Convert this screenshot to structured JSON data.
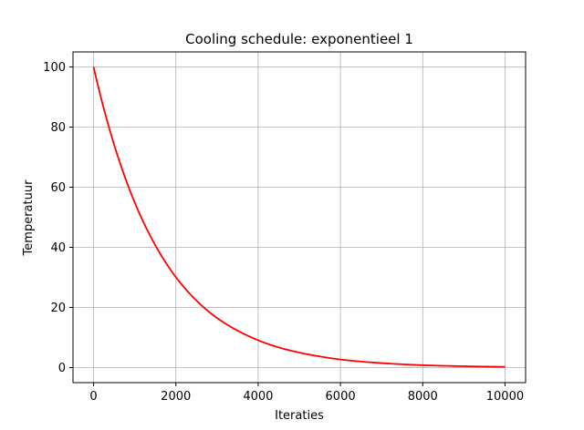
{
  "chart_data": {
    "type": "line",
    "title": "Cooling schedule: exponentieel 1",
    "xlabel": "Iteraties",
    "ylabel": "Temperatuur",
    "xlim": [
      -500,
      10500
    ],
    "ylim": [
      -5,
      105
    ],
    "xticks": [
      0,
      2000,
      4000,
      6000,
      8000,
      10000
    ],
    "xtick_labels": [
      "0",
      "2000",
      "4000",
      "6000",
      "8000",
      "10000"
    ],
    "yticks": [
      0,
      20,
      40,
      60,
      80,
      100
    ],
    "ytick_labels": [
      "0",
      "20",
      "40",
      "60",
      "80",
      "100"
    ],
    "grid": true,
    "series": [
      {
        "color": "#ff0000",
        "x": [
          0,
          250,
          500,
          750,
          1000,
          1250,
          1500,
          1750,
          2000,
          2500,
          3000,
          3500,
          4000,
          4500,
          5000,
          5500,
          6000,
          6500,
          7000,
          7500,
          8000,
          8500,
          9000,
          9500,
          10000
        ],
        "values": [
          100,
          86.1,
          74.1,
          63.8,
          54.9,
          47.3,
          40.7,
          35.0,
          30.1,
          22.3,
          16.5,
          12.3,
          9.1,
          6.7,
          5.0,
          3.7,
          2.7,
          2.0,
          1.5,
          1.1,
          0.8,
          0.6,
          0.45,
          0.33,
          0.25
        ]
      }
    ]
  }
}
